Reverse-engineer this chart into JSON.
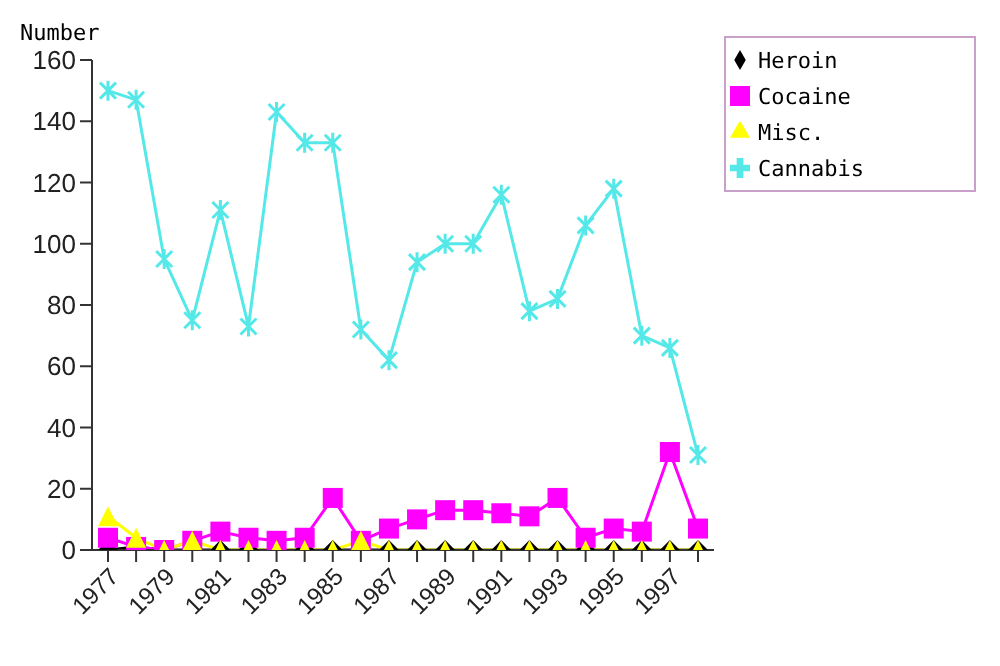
{
  "chart_data": {
    "type": "line",
    "ylabel": "Number",
    "categories": [
      "1977",
      null,
      "1979",
      null,
      "1981",
      null,
      "1983",
      null,
      "1985",
      null,
      "1987",
      null,
      "1989",
      null,
      "1991",
      null,
      "1993",
      null,
      "1995",
      null,
      "1997",
      null
    ],
    "ylim": [
      0,
      160
    ],
    "yticks": [
      0,
      20,
      40,
      60,
      80,
      100,
      120,
      140,
      160
    ],
    "grid": false,
    "legend": "top right",
    "series": [
      {
        "name": "Heroin",
        "color": "#000000",
        "marker": "diamond",
        "values": [
          0,
          1,
          0,
          0,
          0,
          0,
          0,
          0,
          0,
          0,
          0,
          0,
          0,
          0,
          0,
          0,
          0,
          0,
          0,
          0,
          0,
          0
        ]
      },
      {
        "name": "Cocaine",
        "color": "#ff00ff",
        "marker": "square",
        "values": [
          4,
          1,
          0,
          3,
          6,
          4,
          3,
          4,
          17,
          3,
          7,
          10,
          13,
          13,
          12,
          11,
          17,
          4,
          7,
          6,
          32,
          7
        ]
      },
      {
        "name": "Misc.",
        "color": "#ffff00",
        "marker": "triangle",
        "values": [
          11,
          4,
          0,
          3,
          0,
          0,
          0,
          0,
          0,
          3,
          0,
          0,
          0,
          0,
          0,
          0,
          0,
          0,
          0,
          0,
          0,
          0
        ]
      },
      {
        "name": "Cannabis",
        "color": "#55e8e8",
        "marker": "cross",
        "values": [
          150,
          147,
          95,
          75,
          111,
          73,
          143,
          133,
          133,
          72,
          62,
          94,
          100,
          100,
          116,
          78,
          82,
          106,
          118,
          70,
          66,
          31
        ]
      }
    ]
  }
}
